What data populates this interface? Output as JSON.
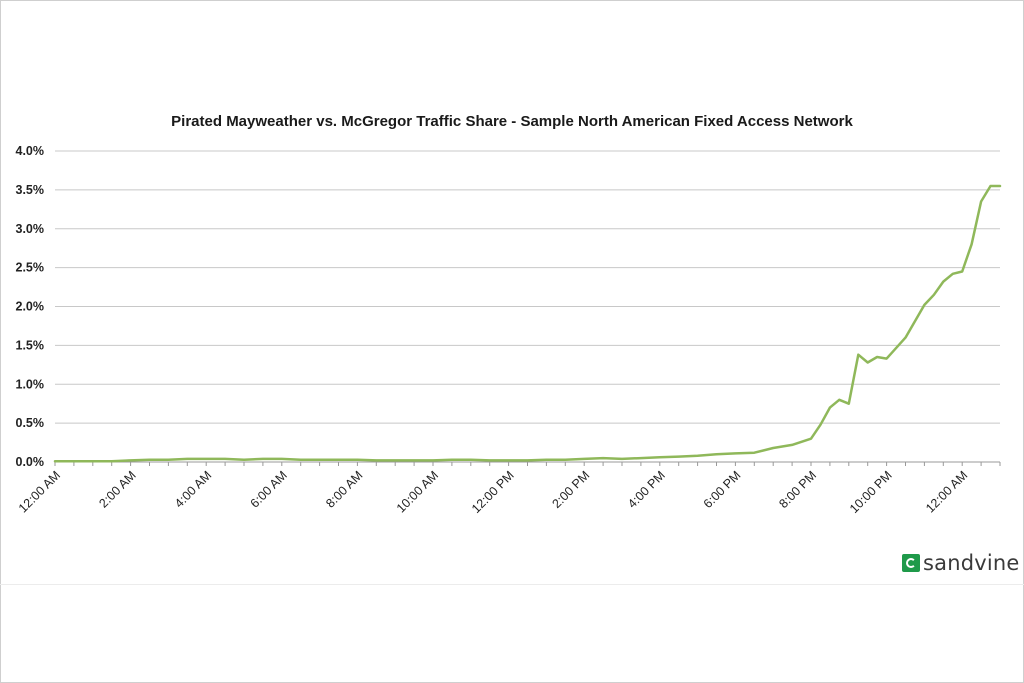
{
  "chart_data": {
    "type": "line",
    "title": "Pirated Mayweather vs. McGregor Traffic Share - Sample North American Fixed Access Network",
    "xlabel": "",
    "ylabel": "",
    "ylim": [
      0,
      4
    ],
    "y_ticks": [
      "0.0%",
      "0.5%",
      "1.0%",
      "1.5%",
      "2.0%",
      "2.5%",
      "3.0%",
      "3.5%",
      "4.0%"
    ],
    "x_ticks": [
      "12:00 AM",
      "2:00 AM",
      "4:00 AM",
      "6:00 AM",
      "8:00 AM",
      "10:00 AM",
      "12:00 PM",
      "2:00 PM",
      "4:00 PM",
      "6:00 PM",
      "8:00 PM",
      "10:00 PM",
      "12:00 AM"
    ],
    "grid": true,
    "color": "#8fb85a",
    "series": [
      {
        "name": "",
        "x_hours": [
          0,
          0.5,
          1,
          1.5,
          2,
          2.5,
          3,
          3.5,
          4,
          4.5,
          5,
          5.5,
          6,
          6.5,
          7,
          7.5,
          8,
          8.5,
          9,
          9.5,
          10,
          10.5,
          11,
          11.5,
          12,
          12.5,
          13,
          13.5,
          14,
          14.5,
          15,
          15.5,
          16,
          16.5,
          17,
          17.5,
          18,
          18.5,
          19,
          19.5,
          20,
          20.25,
          20.5,
          20.75,
          21,
          21.25,
          21.5,
          21.75,
          22,
          22.5,
          23,
          23.25,
          23.5,
          23.75,
          24,
          24.25,
          24.5,
          24.75,
          25
        ],
        "values": [
          0.01,
          0.01,
          0.01,
          0.01,
          0.02,
          0.03,
          0.03,
          0.04,
          0.04,
          0.04,
          0.03,
          0.04,
          0.04,
          0.03,
          0.03,
          0.03,
          0.03,
          0.02,
          0.02,
          0.02,
          0.02,
          0.03,
          0.03,
          0.02,
          0.02,
          0.02,
          0.03,
          0.03,
          0.04,
          0.05,
          0.04,
          0.05,
          0.06,
          0.07,
          0.08,
          0.1,
          0.11,
          0.12,
          0.18,
          0.22,
          0.3,
          0.48,
          0.7,
          0.8,
          0.75,
          1.38,
          1.28,
          1.35,
          1.33,
          1.6,
          2.02,
          2.15,
          2.32,
          2.42,
          2.45,
          2.8,
          3.35,
          3.55,
          3.55
        ]
      }
    ]
  },
  "branding": {
    "logo_text": "sandvine",
    "logo_icon": "sandvine-logo-icon"
  }
}
